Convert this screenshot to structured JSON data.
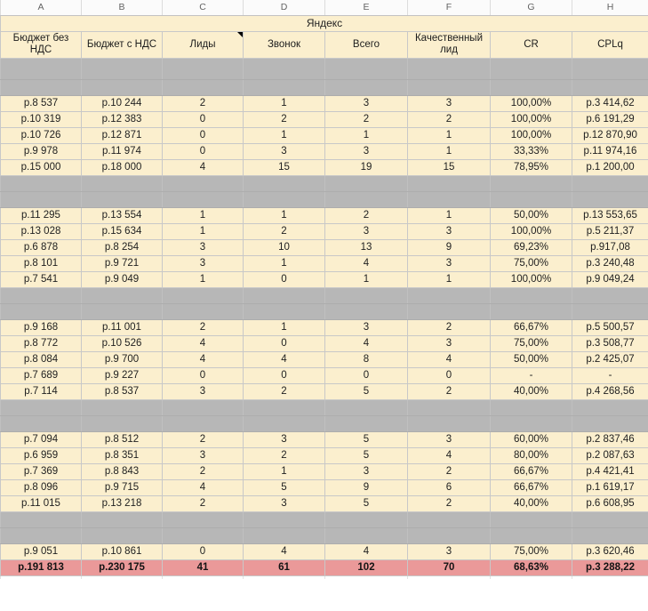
{
  "column_letters": [
    "A",
    "B",
    "C",
    "D",
    "E",
    "F",
    "G",
    "H"
  ],
  "title": "Яндекс",
  "headers": [
    "Бюджет без НДС",
    "Бюджет с НДС",
    "Лиды",
    "Звонок",
    "Всего",
    "Качественный лид",
    "CR",
    "CPLq"
  ],
  "note_marker_header": "Лиды",
  "colors": {
    "band_yellow": "#fbefce",
    "band_gray": "#b7b7b7",
    "band_total_pink": "#ea9999"
  },
  "rows": [
    {
      "type": "gray",
      "tall": true
    },
    {
      "type": "gray"
    },
    {
      "type": "data",
      "cells": [
        "р.8 537",
        "р.10 244",
        "2",
        "1",
        "3",
        "3",
        "100,00%",
        "р.3 414,62"
      ]
    },
    {
      "type": "data",
      "cells": [
        "р.10 319",
        "р.12 383",
        "0",
        "2",
        "2",
        "2",
        "100,00%",
        "р.6 191,29"
      ]
    },
    {
      "type": "data",
      "cells": [
        "р.10 726",
        "р.12 871",
        "0",
        "1",
        "1",
        "1",
        "100,00%",
        "р.12 870,90"
      ]
    },
    {
      "type": "data",
      "cells": [
        "р.9 978",
        "р.11 974",
        "0",
        "3",
        "3",
        "1",
        "33,33%",
        "р.11 974,16"
      ]
    },
    {
      "type": "data",
      "cells": [
        "р.15 000",
        "р.18 000",
        "4",
        "15",
        "19",
        "15",
        "78,95%",
        "р.1 200,00"
      ]
    },
    {
      "type": "gray"
    },
    {
      "type": "gray"
    },
    {
      "type": "data",
      "cells": [
        "р.11 295",
        "р.13 554",
        "1",
        "1",
        "2",
        "1",
        "50,00%",
        "р.13 553,65"
      ]
    },
    {
      "type": "data",
      "cells": [
        "р.13 028",
        "р.15 634",
        "1",
        "2",
        "3",
        "3",
        "100,00%",
        "р.5 211,37"
      ]
    },
    {
      "type": "data",
      "cells": [
        "р.6 878",
        "р.8 254",
        "3",
        "10",
        "13",
        "9",
        "69,23%",
        "р.917,08"
      ]
    },
    {
      "type": "data",
      "cells": [
        "р.8 101",
        "р.9 721",
        "3",
        "1",
        "4",
        "3",
        "75,00%",
        "р.3 240,48"
      ]
    },
    {
      "type": "data",
      "cells": [
        "р.7 541",
        "р.9 049",
        "1",
        "0",
        "1",
        "1",
        "100,00%",
        "р.9 049,24"
      ]
    },
    {
      "type": "gray"
    },
    {
      "type": "gray"
    },
    {
      "type": "data",
      "cells": [
        "р.9 168",
        "р.11 001",
        "2",
        "1",
        "3",
        "2",
        "66,67%",
        "р.5 500,57"
      ]
    },
    {
      "type": "data",
      "cells": [
        "р.8 772",
        "р.10 526",
        "4",
        "0",
        "4",
        "3",
        "75,00%",
        "р.3 508,77"
      ]
    },
    {
      "type": "data",
      "cells": [
        "р.8 084",
        "р.9 700",
        "4",
        "4",
        "8",
        "4",
        "50,00%",
        "р.2 425,07"
      ]
    },
    {
      "type": "data",
      "cells": [
        "р.7 689",
        "р.9 227",
        "0",
        "0",
        "0",
        "0",
        "-",
        "-"
      ]
    },
    {
      "type": "data",
      "cells": [
        "р.7 114",
        "р.8 537",
        "3",
        "2",
        "5",
        "2",
        "40,00%",
        "р.4 268,56"
      ]
    },
    {
      "type": "gray"
    },
    {
      "type": "gray"
    },
    {
      "type": "data",
      "cells": [
        "р.7 094",
        "р.8 512",
        "2",
        "3",
        "5",
        "3",
        "60,00%",
        "р.2 837,46"
      ]
    },
    {
      "type": "data",
      "cells": [
        "р.6 959",
        "р.8 351",
        "3",
        "2",
        "5",
        "4",
        "80,00%",
        "р.2 087,63"
      ]
    },
    {
      "type": "data",
      "cells": [
        "р.7 369",
        "р.8 843",
        "2",
        "1",
        "3",
        "2",
        "66,67%",
        "р.4 421,41"
      ]
    },
    {
      "type": "data",
      "cells": [
        "р.8 096",
        "р.9 715",
        "4",
        "5",
        "9",
        "6",
        "66,67%",
        "р.1 619,17"
      ]
    },
    {
      "type": "data",
      "cells": [
        "р.11 015",
        "р.13 218",
        "2",
        "3",
        "5",
        "2",
        "40,00%",
        "р.6 608,95"
      ]
    },
    {
      "type": "gray"
    },
    {
      "type": "gray"
    },
    {
      "type": "data",
      "cells": [
        "р.9 051",
        "р.10 861",
        "0",
        "4",
        "4",
        "3",
        "75,00%",
        "р.3 620,46"
      ]
    },
    {
      "type": "total",
      "cells": [
        "р.191 813",
        "р.230 175",
        "41",
        "61",
        "102",
        "70",
        "68,63%",
        "р.3 288,22"
      ]
    },
    {
      "type": "filler"
    }
  ]
}
